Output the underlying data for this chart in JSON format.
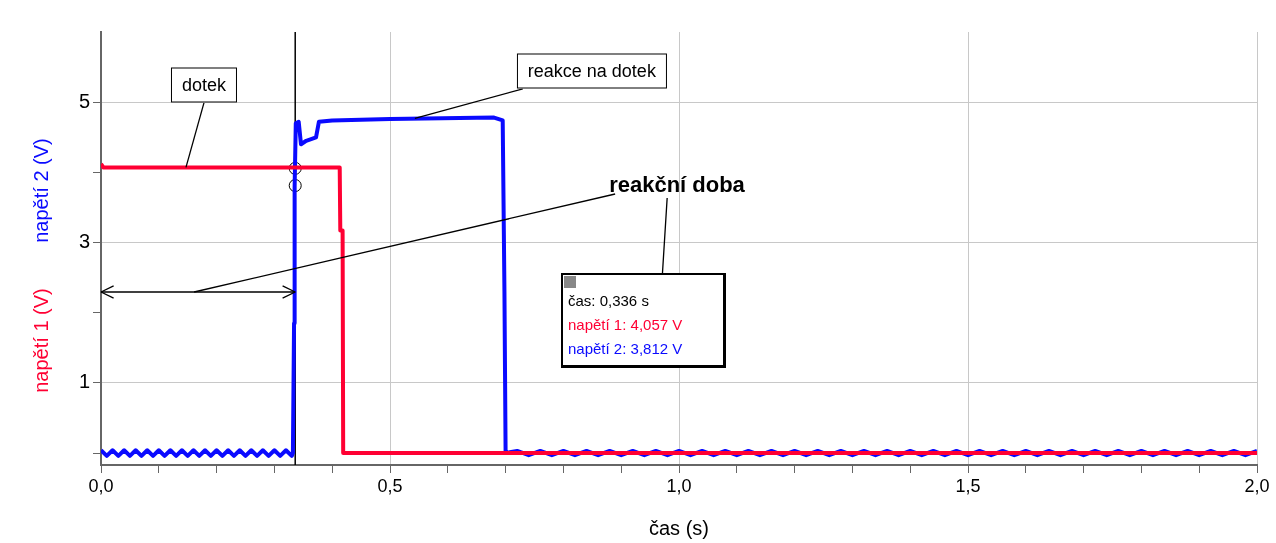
{
  "chart_data": {
    "type": "line",
    "xlabel": "čas (s)",
    "xlim": [
      0,
      2
    ],
    "ylim": [
      -0.17,
      6
    ],
    "xticks": [
      {
        "value": 0,
        "label": "0,0"
      },
      {
        "value": 0.1,
        "label": null
      },
      {
        "value": 0.2,
        "label": null
      },
      {
        "value": 0.3,
        "label": null
      },
      {
        "value": 0.4,
        "label": null
      },
      {
        "value": 0.5,
        "label": "0,5"
      },
      {
        "value": 0.6,
        "label": null
      },
      {
        "value": 0.7,
        "label": null
      },
      {
        "value": 0.8,
        "label": null
      },
      {
        "value": 0.9,
        "label": null
      },
      {
        "value": 1,
        "label": "1,0"
      },
      {
        "value": 1.1,
        "label": null
      },
      {
        "value": 1.2,
        "label": null
      },
      {
        "value": 1.3,
        "label": null
      },
      {
        "value": 1.4,
        "label": null
      },
      {
        "value": 1.5,
        "label": "1,5"
      },
      {
        "value": 1.6,
        "label": null
      },
      {
        "value": 1.7,
        "label": null
      },
      {
        "value": 1.8,
        "label": null
      },
      {
        "value": 1.9,
        "label": null
      },
      {
        "value": 2,
        "label": "2,0"
      }
    ],
    "yticks": [
      {
        "value": 0,
        "label": null
      },
      1,
      {
        "value": 2,
        "label": null
      },
      3,
      {
        "value": 4,
        "label": null
      },
      5
    ],
    "grid": true,
    "marker": "none",
    "line_style": "solid",
    "series": [
      {
        "name": "napětí 1 (V)",
        "color": "#ff0033",
        "x": [
          0,
          0.004,
          0.413,
          0.414,
          0.418,
          0.419,
          2.0
        ],
        "values": [
          4.12,
          4.07,
          4.07,
          3.17,
          3.17,
          0,
          0
        ]
      },
      {
        "name": "napětí 2 (V)",
        "color": "#0a0aff",
        "x": [
          0,
          0.01,
          0.02,
          0.03,
          0.04,
          0.05,
          0.06,
          0.07,
          0.08,
          0.09,
          0.1,
          0.11,
          0.12,
          0.13,
          0.14,
          0.15,
          0.16,
          0.17,
          0.18,
          0.19,
          0.2,
          0.21,
          0.22,
          0.23,
          0.24,
          0.25,
          0.26,
          0.27,
          0.28,
          0.29,
          0.3,
          0.31,
          0.32,
          0.33,
          0.332,
          0.334,
          0.335,
          0.337,
          0.342,
          0.346,
          0.355,
          0.372,
          0.377,
          0.4,
          0.5,
          0.68,
          0.695,
          0.698,
          0.7,
          0.72,
          0.74,
          0.76,
          0.78,
          0.8,
          0.82,
          0.84,
          0.86,
          0.88,
          0.9,
          0.92,
          0.94,
          0.96,
          0.98,
          1.0,
          1.02,
          1.04,
          1.06,
          1.08,
          1.1,
          1.12,
          1.14,
          1.16,
          1.18,
          1.2,
          1.22,
          1.24,
          1.26,
          1.28,
          1.3,
          1.32,
          1.34,
          1.36,
          1.38,
          1.4,
          1.42,
          1.44,
          1.46,
          1.48,
          1.5,
          1.52,
          1.54,
          1.56,
          1.58,
          1.6,
          1.62,
          1.64,
          1.66,
          1.68,
          1.7,
          1.72,
          1.74,
          1.76,
          1.78,
          1.8,
          1.82,
          1.84,
          1.86,
          1.88,
          1.9,
          1.92,
          1.94,
          1.96,
          1.98,
          2.0
        ],
        "values": [
          0.04,
          -0.04,
          0.04,
          -0.04,
          0.04,
          -0.04,
          0.04,
          -0.04,
          0.04,
          -0.04,
          0.04,
          -0.04,
          0.04,
          -0.04,
          0.04,
          -0.04,
          0.04,
          -0.04,
          0.04,
          -0.04,
          0.04,
          -0.04,
          0.04,
          -0.04,
          0.04,
          -0.04,
          0.04,
          -0.04,
          0.04,
          -0.04,
          0.04,
          -0.04,
          0.04,
          -0.04,
          0,
          1.85,
          3.8,
          4.7,
          4.72,
          4.4,
          4.45,
          4.5,
          4.72,
          4.74,
          4.76,
          4.78,
          4.74,
          2.3,
          0,
          0.03,
          -0.03,
          0.03,
          -0.03,
          0.03,
          -0.03,
          0.03,
          -0.03,
          0.03,
          -0.03,
          0.03,
          -0.03,
          0.03,
          -0.03,
          0.03,
          -0.03,
          0.03,
          -0.03,
          0.03,
          -0.03,
          0.03,
          -0.03,
          0.03,
          -0.03,
          0.03,
          -0.03,
          0.03,
          -0.03,
          0.03,
          -0.03,
          0.03,
          -0.03,
          0.03,
          -0.03,
          0.03,
          -0.03,
          0.03,
          -0.03,
          0.03,
          -0.03,
          0.03,
          -0.03,
          0.03,
          -0.03,
          0.03,
          -0.03,
          0.03,
          -0.03,
          0.03,
          -0.03,
          0.03,
          -0.03,
          0.03,
          -0.03,
          0.03,
          -0.03,
          0.03,
          -0.03,
          0.03,
          -0.03,
          0.03,
          -0.03,
          0.03,
          -0.03,
          0.03
        ]
      },
      {
        "type": "scatter",
        "color": "#000000",
        "marker": "circle",
        "x": [
          0.336,
          0.336
        ],
        "values": [
          4.057,
          3.812
        ]
      }
    ],
    "ref_lines": [
      {
        "axis": "x",
        "value": 0.336,
        "color": "#000000"
      }
    ],
    "annotations": [
      {
        "text": "dotek",
        "x": 0.147,
        "y": 4.07
      },
      {
        "text": "reakce na dotek",
        "x": 0.543,
        "y": 4.77
      },
      "reakční doba",
      "čas: 0,336 s",
      "napětí 1: 4,057 V",
      "napětí 2: 3,812 V"
    ]
  }
}
